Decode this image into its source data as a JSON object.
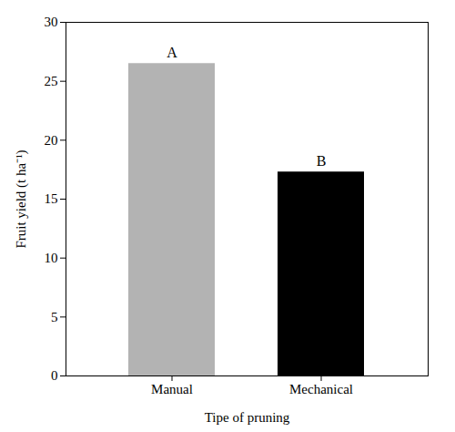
{
  "chart_data": {
    "type": "bar",
    "categories": [
      "Manual",
      "Mechanical"
    ],
    "values": [
      26.5,
      17.3
    ],
    "colors": [
      "#b3b3b3",
      "#000000"
    ],
    "x_label": "Tipe of pruning",
    "y_label": "Fruit yield (t ha⁻¹)",
    "ylim": [
      0,
      30
    ],
    "yticks": [
      0,
      5,
      10,
      15,
      20,
      25,
      30
    ],
    "annotations": [
      {
        "category": "Manual",
        "text": "A"
      },
      {
        "category": "Mechanical",
        "text": "B"
      }
    ]
  }
}
